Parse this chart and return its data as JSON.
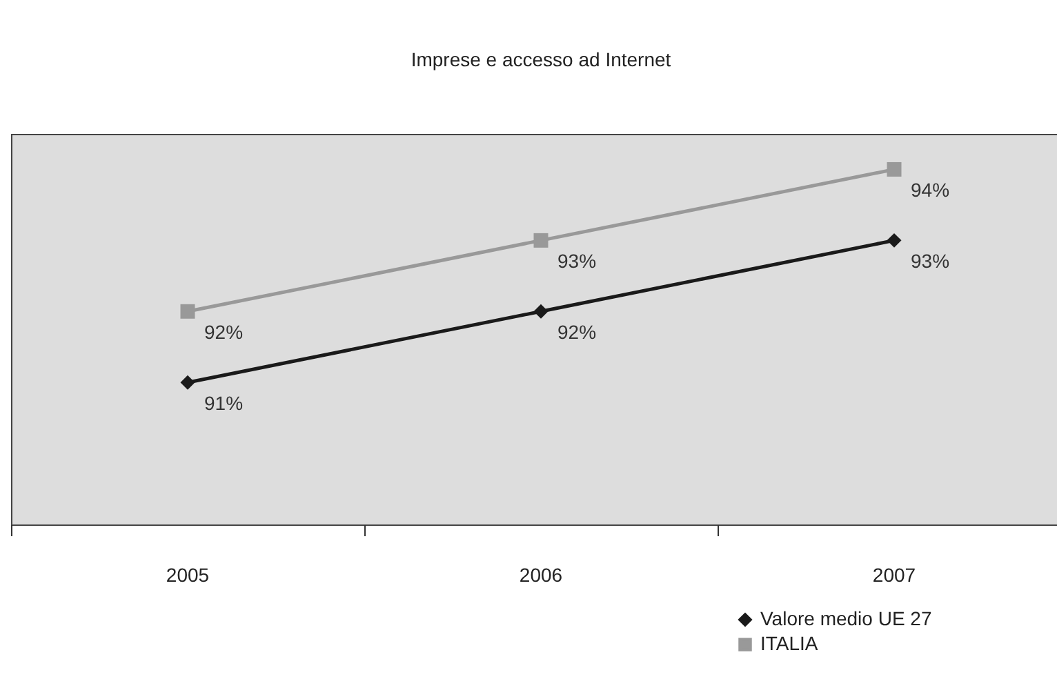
{
  "chart_data": {
    "type": "line",
    "title": "Imprese e accesso ad Internet",
    "categories": [
      "2005",
      "2006",
      "2007"
    ],
    "series": [
      {
        "name": "Valore medio UE 27",
        "color": "#1a1a1a",
        "marker": "diamond",
        "values": [
          91,
          92,
          93
        ],
        "value_labels": [
          "91%",
          "92%",
          "93%"
        ]
      },
      {
        "name": "ITALIA",
        "color": "#999999",
        "marker": "square",
        "values": [
          92,
          93,
          94
        ],
        "value_labels": [
          "92%",
          "93%",
          "94%"
        ]
      }
    ],
    "ylim": [
      89,
      94.5
    ],
    "tick_labels": "x",
    "grid": false,
    "legend": "bottom right",
    "line_style": "solid"
  }
}
